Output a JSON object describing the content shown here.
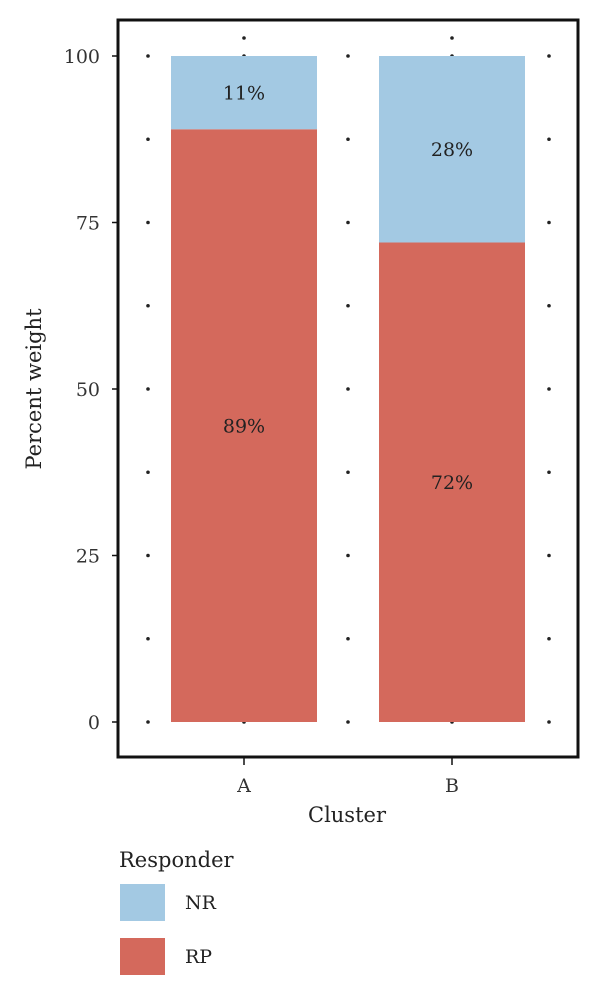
{
  "chart_data": {
    "type": "bar",
    "stacked": true,
    "categories": [
      "A",
      "B"
    ],
    "series": [
      {
        "name": "RP",
        "values": [
          89,
          72
        ],
        "labels": [
          "89%",
          "72%"
        ],
        "color": "#d4695c"
      },
      {
        "name": "NR",
        "values": [
          11,
          28
        ],
        "labels": [
          "11%",
          "28%"
        ],
        "color": "#a3c9e3"
      }
    ],
    "xlabel": "Cluster",
    "ylabel": "Percent weight",
    "ylim": [
      0,
      100
    ],
    "yticks": [
      0,
      25,
      50,
      75,
      100
    ],
    "ytick_labels": [
      "0",
      "25",
      "50",
      "75",
      "100"
    ],
    "grid": "dotted",
    "legend": {
      "title": "Responder",
      "placement": "bottom-left",
      "entries": [
        "NR",
        "RP"
      ]
    }
  }
}
